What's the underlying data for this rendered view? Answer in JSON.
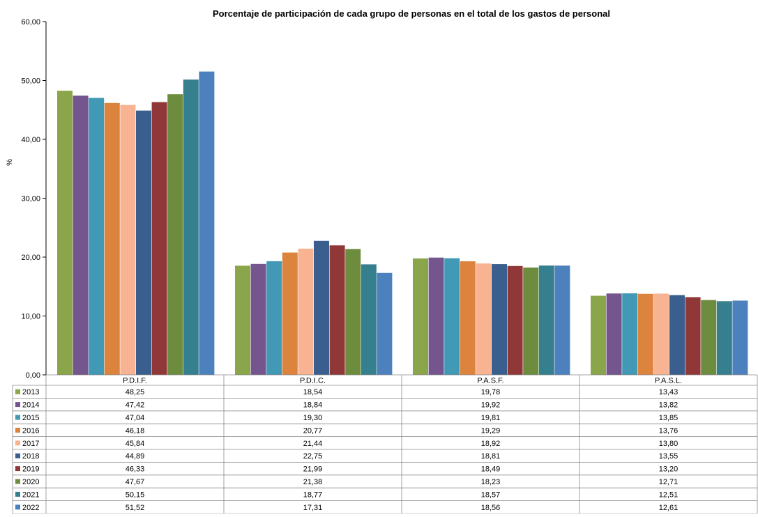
{
  "chart_data": {
    "type": "bar",
    "title": "Porcentaje de participación de cada grupo de personas en el total de los gastos de personal",
    "ylabel": "%",
    "xlabel": "",
    "ylim": [
      0,
      60
    ],
    "yticks": [
      "0,00",
      "10,00",
      "20,00",
      "30,00",
      "40,00",
      "50,00",
      "60,00"
    ],
    "grid": false,
    "legend": "data-table",
    "categories": [
      "P.D.I.F.",
      "P.D.I.C.",
      "P.A.S.F.",
      "P.A.S.L."
    ],
    "series": [
      {
        "name": "2013",
        "color": "#8BA54B",
        "values": [
          48.25,
          18.54,
          19.78,
          13.43
        ],
        "labels": [
          "48,25",
          "18,54",
          "19,78",
          "13,43"
        ]
      },
      {
        "name": "2014",
        "color": "#74558E",
        "values": [
          47.42,
          18.84,
          19.92,
          13.82
        ],
        "labels": [
          "47,42",
          "18,84",
          "19,92",
          "13,82"
        ]
      },
      {
        "name": "2015",
        "color": "#4299B5",
        "values": [
          47.04,
          19.3,
          19.81,
          13.85
        ],
        "labels": [
          "47,04",
          "19,30",
          "19,81",
          "13,85"
        ]
      },
      {
        "name": "2016",
        "color": "#DC843D",
        "values": [
          46.18,
          20.77,
          19.29,
          13.76
        ],
        "labels": [
          "46,18",
          "20,77",
          "19,29",
          "13,76"
        ]
      },
      {
        "name": "2017",
        "color": "#F8B492",
        "values": [
          45.84,
          21.44,
          18.92,
          13.8
        ],
        "labels": [
          "45,84",
          "21,44",
          "18,92",
          "13,80"
        ]
      },
      {
        "name": "2018",
        "color": "#3A5F8E",
        "values": [
          44.89,
          22.75,
          18.81,
          13.55
        ],
        "labels": [
          "44,89",
          "22,75",
          "18,81",
          "13,55"
        ]
      },
      {
        "name": "2019",
        "color": "#903838",
        "values": [
          46.33,
          21.99,
          18.49,
          13.2
        ],
        "labels": [
          "46,33",
          "21,99",
          "18,49",
          "13,20"
        ]
      },
      {
        "name": "2020",
        "color": "#6E8C3E",
        "values": [
          47.67,
          21.38,
          18.23,
          12.71
        ],
        "labels": [
          "47,67",
          "21,38",
          "18,23",
          "12,71"
        ]
      },
      {
        "name": "2021",
        "color": "#357F8E",
        "values": [
          50.15,
          18.77,
          18.57,
          12.51
        ],
        "labels": [
          "50,15",
          "18,77",
          "18,57",
          "12,51"
        ]
      },
      {
        "name": "2022",
        "color": "#4D81BE",
        "values": [
          51.52,
          17.31,
          18.56,
          12.61
        ],
        "labels": [
          "51,52",
          "17,31",
          "18,56",
          "12,61"
        ]
      }
    ]
  }
}
